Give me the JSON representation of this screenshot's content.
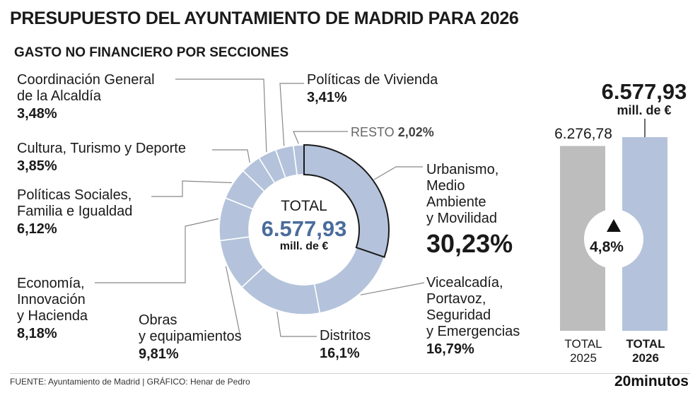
{
  "header": {
    "title": "PRESUPUESTO DEL AYUNTAMIENTO DE MADRID PARA 2026",
    "subtitle": "GASTO NO FINANCIERO POR SECCIONES"
  },
  "donut": {
    "center_label": "TOTAL",
    "center_value": "6.577,93",
    "center_unit": "mill. de €"
  },
  "labels": {
    "urbanismo": {
      "name": [
        "Urbanismo,",
        "Medio",
        "Ambiente",
        "y Movilidad"
      ],
      "pct": "30,23%"
    },
    "vicealcaldia": {
      "name": [
        "Vicealcadía,",
        "Portavoz,",
        "Seguridad",
        "y Emergencias"
      ],
      "pct": "16,79%"
    },
    "distritos": {
      "name": [
        "Distritos"
      ],
      "pct": "16,1%"
    },
    "obras": {
      "name": [
        "Obras",
        "y equipamientos"
      ],
      "pct": "9,81%"
    },
    "economia": {
      "name": [
        "Economía,",
        "Innovación",
        "y Hacienda"
      ],
      "pct": "8,18%"
    },
    "sociales": {
      "name": [
        "Políticas Sociales,",
        "Familia e Igualdad"
      ],
      "pct": "6,12%"
    },
    "cultura": {
      "name": [
        "Cultura, Turismo y Deporte"
      ],
      "pct": "3,85%"
    },
    "coordinacion": {
      "name": [
        "Coordinación General",
        "de la Alcaldía"
      ],
      "pct": "3,48%"
    },
    "vivienda": {
      "name": [
        "Políticas de Vivienda"
      ],
      "pct": "3,41%"
    },
    "resto": {
      "name": "RESTO",
      "pct": "2,02%"
    }
  },
  "bars": {
    "value_2025": "6.276,78",
    "value_2026": "6.577,93",
    "unit_2026": "mill. de €",
    "cat_2025": [
      "TOTAL",
      "2025"
    ],
    "cat_2026": [
      "TOTAL",
      "2026"
    ],
    "change": "4,8%",
    "change_icon": "triangle-up-icon"
  },
  "footer": {
    "source": "FUENTE: Ayuntamiento de Madrid  |  GRÁFICO: Henar de Pedro",
    "brand": "20minutos"
  },
  "colors": {
    "slice": "#b4c3db",
    "slice_border": "#ffffff",
    "highlight_border": "#1a1a1a",
    "bar_2025": "#bdbdbd",
    "bar_2026": "#b4c3db",
    "value_blue": "#4a6c9b",
    "leader": "#888888"
  },
  "chart_data": [
    {
      "type": "pie",
      "title": "GASTO NO FINANCIERO POR SECCIONES",
      "categories": [
        "Urbanismo, Medio Ambiente y Movilidad",
        "Vicealcadía, Portavoz, Seguridad y Emergencias",
        "Distritos",
        "Obras y equipamientos",
        "Economía, Innovación y Hacienda",
        "Políticas Sociales, Familia e Igualdad",
        "Cultura, Turismo y Deporte",
        "Coordinación General de la Alcaldía",
        "Políticas de Vivienda",
        "RESTO"
      ],
      "values": [
        30.23,
        16.79,
        16.1,
        9.81,
        8.18,
        6.12,
        3.85,
        3.48,
        3.41,
        2.02
      ],
      "total": 6577.93,
      "unit": "mill. de €"
    },
    {
      "type": "bar",
      "categories": [
        "TOTAL 2025",
        "TOTAL 2026"
      ],
      "values": [
        6276.78,
        6577.93
      ],
      "change_percent": 4.8
    }
  ]
}
